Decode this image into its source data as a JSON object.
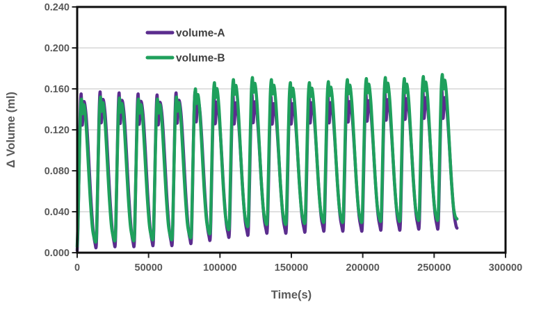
{
  "chart_data": {
    "type": "line",
    "title": "",
    "xlabel": "Time(s)",
    "ylabel": "Δ Volume (ml)",
    "xlim": [
      0,
      300000
    ],
    "ylim": [
      0.0,
      0.24
    ],
    "x_ticks": [
      0,
      50000,
      100000,
      150000,
      200000,
      250000,
      300000
    ],
    "x_tick_labels": [
      "0",
      "50000",
      "100000",
      "150000",
      "200000",
      "250000",
      "300000"
    ],
    "y_ticks": [
      0.0,
      0.04,
      0.08,
      0.12,
      0.16,
      0.2,
      0.24
    ],
    "y_tick_labels": [
      "0.000",
      "0.040",
      "0.080",
      "0.120",
      "0.160",
      "0.200",
      "0.240"
    ],
    "grid": "horizontal",
    "grid_color": "#d6d6d6",
    "border_color": "#0d0d0d",
    "tick_color": "#262626",
    "legend_position": "top-inside",
    "legend": [
      "volume-A",
      "volume-B"
    ],
    "series": [
      {
        "name": "volume-A",
        "color": "#5b2d8e",
        "line_width": 4.5
      },
      {
        "name": "volume-B",
        "color": "#1fa05c",
        "line_width": 4.5
      }
    ],
    "pattern": {
      "period_s": 13300,
      "n_cycles": 20,
      "end_time_s": 266000,
      "peak_A": [
        0.155,
        0.157,
        0.156,
        0.155,
        0.154,
        0.156,
        0.157,
        0.154,
        0.153,
        0.154,
        0.152,
        0.152,
        0.153,
        0.153,
        0.154,
        0.155,
        0.156,
        0.157,
        0.158,
        0.158
      ],
      "peak_B": [
        0.15,
        0.152,
        0.151,
        0.15,
        0.15,
        0.152,
        0.16,
        0.166,
        0.169,
        0.171,
        0.169,
        0.166,
        0.166,
        0.167,
        0.169,
        0.17,
        0.171,
        0.17,
        0.172,
        0.174
      ],
      "trough_A": [
        0.006,
        0.007,
        0.007,
        0.008,
        0.008,
        0.01,
        0.013,
        0.016,
        0.018,
        0.02,
        0.02,
        0.021,
        0.022,
        0.022,
        0.022,
        0.023,
        0.023,
        0.024,
        0.024,
        0.024
      ],
      "trough_B": [
        0.012,
        0.013,
        0.013,
        0.014,
        0.014,
        0.016,
        0.02,
        0.024,
        0.027,
        0.029,
        0.029,
        0.03,
        0.031,
        0.031,
        0.031,
        0.032,
        0.032,
        0.033,
        0.033,
        0.033
      ],
      "start_trough_A": 0.002,
      "start_trough_B": 0.006,
      "shape_A": [
        [
          0,
          0
        ],
        [
          0.04,
          0.14
        ],
        [
          0.09,
          0.46
        ],
        [
          0.15,
          0.84
        ],
        [
          0.21,
          1.0
        ],
        [
          0.265,
          0.8
        ],
        [
          0.35,
          0.95
        ],
        [
          0.47,
          0.86
        ],
        [
          0.59,
          0.62
        ],
        [
          0.71,
          0.34
        ],
        [
          0.84,
          0.11
        ],
        [
          0.945,
          0.02
        ],
        [
          1,
          0
        ]
      ],
      "shape_B": [
        [
          0,
          0
        ],
        [
          0.045,
          0.18
        ],
        [
          0.1,
          0.52
        ],
        [
          0.165,
          0.88
        ],
        [
          0.225,
          1.0
        ],
        [
          0.275,
          0.9
        ],
        [
          0.36,
          0.96
        ],
        [
          0.46,
          0.84
        ],
        [
          0.565,
          0.6
        ],
        [
          0.68,
          0.32
        ],
        [
          0.8,
          0.1
        ],
        [
          0.9,
          0.02
        ],
        [
          1,
          0
        ]
      ]
    }
  }
}
